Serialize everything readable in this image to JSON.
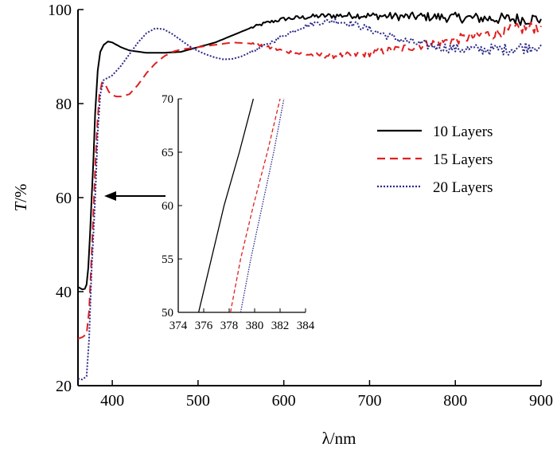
{
  "chart_data": [
    {
      "type": "line",
      "title": "",
      "xlabel": "λ/nm",
      "ylabel_italic": "T",
      "ylabel_rest": "/%",
      "xlim": [
        360,
        900
      ],
      "ylim": [
        20,
        100
      ],
      "xticks": [
        400,
        500,
        600,
        700,
        800,
        900
      ],
      "yticks": [
        20,
        40,
        60,
        80,
        100
      ],
      "grid": false,
      "legend": "right",
      "series": [
        {
          "name": "10 Layers",
          "color": "#000000",
          "style": "solid",
          "x": [
            360,
            365,
            368,
            370,
            372,
            374,
            376,
            378,
            380,
            383,
            386,
            390,
            395,
            400,
            410,
            420,
            440,
            460,
            480,
            500,
            520,
            540,
            560,
            580,
            600,
            620,
            640,
            660,
            680,
            700,
            720,
            740,
            760,
            780,
            800,
            820,
            840,
            860,
            880,
            900
          ],
          "y": [
            41,
            40.5,
            40.6,
            41.5,
            45,
            52,
            60,
            68,
            78,
            87,
            91,
            92.5,
            93.2,
            93,
            92,
            91.3,
            90.8,
            90.8,
            91,
            92,
            93,
            94.5,
            96,
            97.2,
            98,
            98.3,
            98.6,
            98.7,
            98.8,
            98.7,
            98.6,
            98.5,
            98.5,
            98.4,
            98.3,
            98.2,
            98.1,
            98,
            98,
            98
          ]
        },
        {
          "name": "15 Layers",
          "color": "#e02020",
          "style": "dashed",
          "x": [
            360,
            365,
            370,
            373,
            376,
            378,
            380,
            382,
            385,
            388,
            392,
            396,
            400,
            405,
            410,
            420,
            430,
            440,
            450,
            460,
            470,
            480,
            500,
            520,
            540,
            560,
            580,
            600,
            620,
            640,
            660,
            680,
            700,
            720,
            740,
            760,
            780,
            800,
            820,
            840,
            860,
            880,
            900
          ],
          "y": [
            30,
            30.3,
            31,
            36,
            48,
            57,
            66,
            74,
            82,
            84.5,
            84,
            82.5,
            81.8,
            81.5,
            81.5,
            82,
            84,
            86.5,
            88.5,
            90,
            91,
            91.5,
            92,
            92.5,
            93,
            92.8,
            92,
            91.2,
            90.6,
            90.3,
            90.2,
            90.3,
            90.7,
            91.2,
            91.8,
            92.4,
            93,
            93.6,
            94.2,
            94.8,
            95.4,
            96,
            96.5
          ]
        },
        {
          "name": "20 Layers",
          "color": "#2a2a8a",
          "style": "dotted",
          "x": [
            360,
            365,
            370,
            373,
            376,
            379,
            381,
            383,
            386,
            390,
            400,
            410,
            420,
            430,
            440,
            450,
            460,
            470,
            480,
            490,
            500,
            510,
            520,
            530,
            540,
            550,
            560,
            580,
            600,
            620,
            640,
            660,
            680,
            700,
            720,
            740,
            760,
            780,
            800,
            820,
            840,
            860,
            880,
            900
          ],
          "y": [
            21.5,
            21.3,
            22,
            30,
            45,
            56,
            64,
            74,
            82,
            85,
            86,
            88,
            90.5,
            93,
            95,
            96,
            95.8,
            94.8,
            93.5,
            92.2,
            91.2,
            90.4,
            89.8,
            89.4,
            89.5,
            90,
            90.8,
            92.5,
            94.5,
            96.2,
            97.3,
            97.6,
            97,
            95.8,
            94.5,
            93.4,
            92.6,
            92.1,
            91.7,
            91.5,
            91.5,
            91.6,
            92,
            92.5
          ]
        }
      ]
    },
    {
      "type": "line",
      "title": "",
      "xlabel": "",
      "ylabel": "",
      "xlim": [
        374,
        384
      ],
      "ylim": [
        50,
        70
      ],
      "xticks": [
        374,
        376,
        378,
        380,
        382,
        384
      ],
      "yticks": [
        50,
        55,
        60,
        65,
        70
      ],
      "grid": false,
      "series": [
        {
          "color": "#000000",
          "style": "solid",
          "x": [
            375.6,
            376.6,
            377.6,
            378.8,
            379.9
          ],
          "y": [
            50,
            55,
            60,
            65,
            70
          ]
        },
        {
          "color": "#e02020",
          "style": "dashed",
          "x": [
            378.1,
            378.9,
            379.9,
            381.0,
            382.0
          ],
          "y": [
            50,
            55,
            60,
            65,
            70
          ]
        },
        {
          "color": "#2a2a8a",
          "style": "dotted",
          "x": [
            378.9,
            379.7,
            380.6,
            381.5,
            382.3
          ],
          "y": [
            50,
            55,
            60,
            65,
            70
          ]
        }
      ]
    }
  ]
}
